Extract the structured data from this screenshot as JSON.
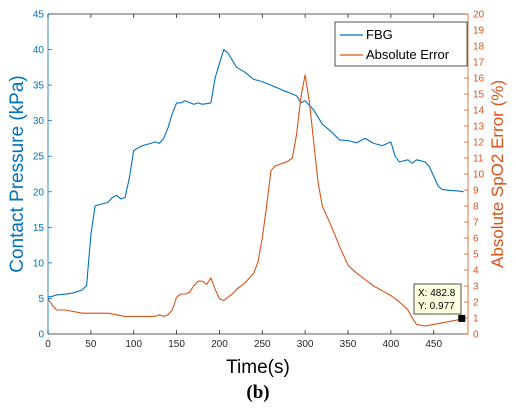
{
  "chart_data": {
    "type": "line",
    "xlabel": "Time(s)",
    "ylabel_left": "Contact Pressure (kPa)",
    "ylabel_right": "Absolute SpO2 Error (%)",
    "caption": "(b)",
    "xlim": [
      0,
      490
    ],
    "ylim_left": [
      0,
      45
    ],
    "ylim_right": [
      0,
      20
    ],
    "x_ticks": [
      "0",
      "50",
      "100",
      "150",
      "200",
      "250",
      "300",
      "350",
      "400",
      "450"
    ],
    "y_left_ticks": [
      "0",
      "5",
      "10",
      "15",
      "20",
      "25",
      "30",
      "35",
      "40",
      "45"
    ],
    "y_right_ticks": [
      "0",
      "1",
      "2",
      "3",
      "4",
      "5",
      "6",
      "7",
      "8",
      "9",
      "10",
      "11",
      "12",
      "13",
      "14",
      "15",
      "16",
      "17",
      "18",
      "19",
      "20"
    ],
    "grid": false,
    "legend_position": "top-right",
    "colors": {
      "FBG": "#0072BD",
      "Absolute Error": "#D95319",
      "axis": "#262626"
    },
    "series": [
      {
        "name": "FBG",
        "axis": "left",
        "x": [
          0,
          5,
          10,
          20,
          30,
          40,
          45,
          50,
          55,
          60,
          70,
          75,
          80,
          85,
          90,
          95,
          100,
          110,
          120,
          125,
          130,
          135,
          140,
          145,
          150,
          155,
          160,
          170,
          175,
          180,
          190,
          195,
          200,
          205,
          210,
          215,
          220,
          230,
          240,
          250,
          260,
          270,
          275,
          280,
          290,
          295,
          300,
          310,
          320,
          330,
          340,
          350,
          360,
          370,
          380,
          390,
          400,
          405,
          410,
          420,
          425,
          430,
          440,
          445,
          450,
          455,
          460,
          470,
          480,
          485
        ],
        "values": [
          5.2,
          5.3,
          5.5,
          5.6,
          5.8,
          6.2,
          6.8,
          14,
          18,
          18.2,
          18.5,
          19.2,
          19.5,
          19,
          19.2,
          22,
          25.8,
          26.5,
          26.8,
          27,
          26.8,
          27.5,
          29,
          31,
          32.5,
          32.5,
          32.8,
          32.3,
          32.5,
          32.3,
          32.5,
          36,
          38,
          40,
          39.5,
          38.5,
          37.5,
          36.8,
          35.8,
          35.5,
          35,
          34.5,
          34.2,
          34,
          33.5,
          32.5,
          32.8,
          31.5,
          29.5,
          28.5,
          27.3,
          27.2,
          26.9,
          27.5,
          26.8,
          26.5,
          27,
          25,
          24.2,
          24.5,
          24,
          24.5,
          24.2,
          23.5,
          22.2,
          20.8,
          20.3,
          20.2,
          20.1,
          20
        ]
      },
      {
        "name": "Absolute Error",
        "axis": "right",
        "x": [
          0,
          5,
          10,
          20,
          30,
          40,
          50,
          60,
          70,
          80,
          90,
          100,
          110,
          120,
          125,
          130,
          135,
          140,
          145,
          150,
          155,
          160,
          165,
          170,
          175,
          180,
          185,
          190,
          195,
          200,
          205,
          210,
          215,
          220,
          225,
          230,
          240,
          245,
          250,
          255,
          260,
          265,
          270,
          275,
          280,
          285,
          290,
          295,
          300,
          305,
          310,
          315,
          320,
          330,
          340,
          350,
          360,
          370,
          380,
          390,
          400,
          410,
          420,
          425,
          430,
          440,
          450,
          460,
          470,
          480,
          482.8
        ],
        "values": [
          2.2,
          1.8,
          1.5,
          1.5,
          1.4,
          1.3,
          1.3,
          1.3,
          1.3,
          1.2,
          1.1,
          1.1,
          1.1,
          1.1,
          1.1,
          1.2,
          1.1,
          1.2,
          1.5,
          2.3,
          2.5,
          2.5,
          2.6,
          3.0,
          3.3,
          3.3,
          3.1,
          3.5,
          2.8,
          2.2,
          2.1,
          2.3,
          2.5,
          2.8,
          3.0,
          3.2,
          3.8,
          4.5,
          6.0,
          8.0,
          10.2,
          10.5,
          10.6,
          10.7,
          10.8,
          11.0,
          12.5,
          14.8,
          16.2,
          14.5,
          12.0,
          9.5,
          8.0,
          6.8,
          5.5,
          4.3,
          3.8,
          3.4,
          3.0,
          2.7,
          2.4,
          2.0,
          1.5,
          1.0,
          0.6,
          0.5,
          0.6,
          0.7,
          0.8,
          0.9,
          0.977
        ]
      }
    ],
    "datatip": {
      "x_label": "X: 482.8",
      "y_label": "Y: 0.977",
      "x": 482.8,
      "y": 0.977
    }
  }
}
